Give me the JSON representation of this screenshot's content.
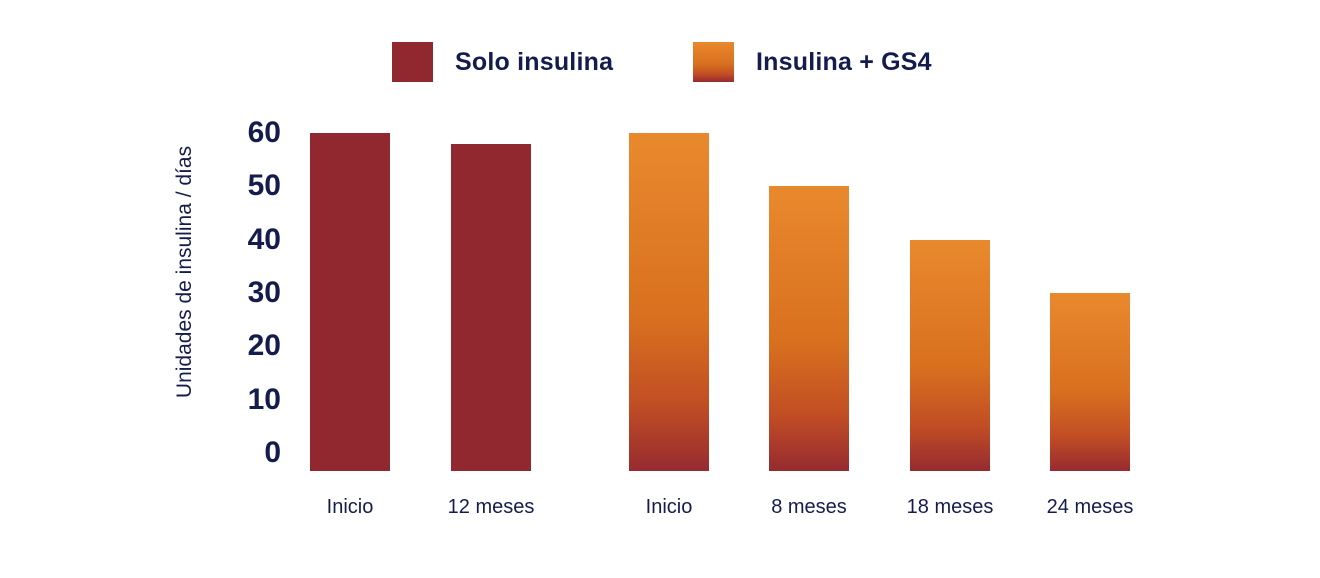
{
  "colors": {
    "background": "#FFFFFF",
    "text_navy": "#141C4D",
    "solo_insulina_red": "#92282F",
    "gs4_orange_top": "#E9892D",
    "gs4_orange_mid": "#D8701F",
    "gs4_orange_low": "#C24E24",
    "gs4_red_bottom": "#962B30"
  },
  "legend": {
    "items": [
      {
        "label": "Solo insulina",
        "swatch": "solid-dark-red"
      },
      {
        "label": "Insulina + GS4",
        "swatch": "orange-gradient"
      }
    ]
  },
  "chart_data": {
    "type": "bar",
    "title": "",
    "xlabel": "",
    "ylabel": "Unidades de insulina / días",
    "ylim": [
      0,
      60
    ],
    "yticks": [
      0,
      10,
      20,
      30,
      40,
      50,
      60
    ],
    "grid": false,
    "legend_position": "top",
    "series": [
      {
        "name": "Solo insulina",
        "color": "#92282F",
        "gradient": null,
        "categories": [
          "Inicio",
          "12 meses"
        ],
        "values": [
          60,
          58
        ]
      },
      {
        "name": "Insulina + GS4",
        "color": "#E9892D",
        "gradient": [
          "#E9892D",
          "#D8701F",
          "#C24E24",
          "#962B30"
        ],
        "categories": [
          "Inicio",
          "8 meses",
          "18 meses",
          "24 meses"
        ],
        "values": [
          60,
          50,
          40,
          30
        ]
      }
    ]
  }
}
